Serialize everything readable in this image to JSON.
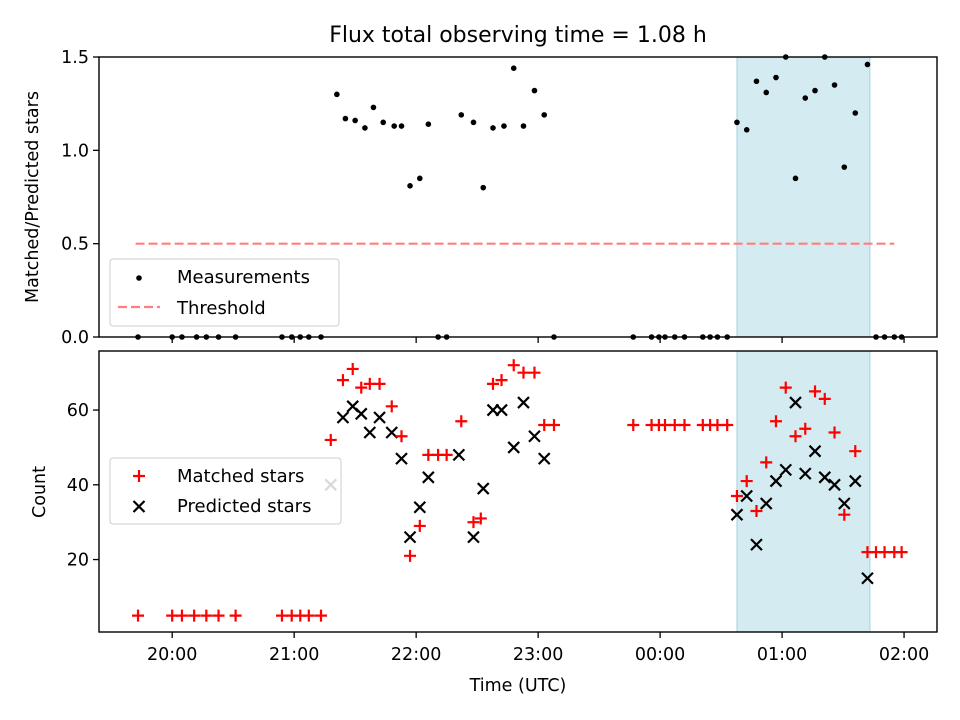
{
  "title": "Flux total observing time = 1.08 h",
  "colors": {
    "measurement": "#000000",
    "threshold": "#ff7f7f",
    "matched": "#ff0000",
    "predicted": "#000000",
    "highlight": "#d4ebf1",
    "highlight_edge": "#a8d2e0"
  },
  "chart_data": [
    {
      "type": "scatter",
      "title": "Flux total observing time = 1.08 h",
      "xlabel": "",
      "ylabel": "Matched/Predicted stars",
      "x_unit": "hours since 00:00 UTC",
      "xlim": [
        -4.6,
        2.27
      ],
      "ylim": [
        0,
        1.5
      ],
      "yticks": [
        0.0,
        0.5,
        1.0,
        1.5
      ],
      "ytick_labels": [
        "0.0",
        "0.5",
        "1.0",
        "1.5"
      ],
      "highlight_span": [
        0.63,
        1.72
      ],
      "threshold": {
        "label": "Threshold",
        "y": 0.5,
        "x_range": [
          -4.3,
          1.92
        ],
        "style": "dashed"
      },
      "legend": {
        "location": "lower-left",
        "entries": [
          "Measurements",
          "Threshold"
        ]
      },
      "series": [
        {
          "name": "Measurements",
          "marker": "dot",
          "points": [
            [
              -4.28,
              0
            ],
            [
              -4.0,
              0
            ],
            [
              -3.92,
              0
            ],
            [
              -3.8,
              0
            ],
            [
              -3.72,
              0
            ],
            [
              -3.62,
              0
            ],
            [
              -3.48,
              0
            ],
            [
              -3.1,
              0
            ],
            [
              -3.02,
              0
            ],
            [
              -2.95,
              0
            ],
            [
              -2.88,
              0
            ],
            [
              -2.78,
              0
            ],
            [
              -2.65,
              1.3
            ],
            [
              -2.58,
              1.17
            ],
            [
              -2.5,
              1.16
            ],
            [
              -2.42,
              1.12
            ],
            [
              -2.35,
              1.23
            ],
            [
              -2.27,
              1.15
            ],
            [
              -2.18,
              1.13
            ],
            [
              -2.12,
              1.13
            ],
            [
              -2.05,
              0.81
            ],
            [
              -1.97,
              0.85
            ],
            [
              -1.9,
              1.14
            ],
            [
              -1.82,
              0
            ],
            [
              -1.75,
              0
            ],
            [
              -1.63,
              1.19
            ],
            [
              -1.53,
              1.15
            ],
            [
              -1.45,
              0.8
            ],
            [
              -1.37,
              1.12
            ],
            [
              -1.28,
              1.13
            ],
            [
              -1.2,
              1.44
            ],
            [
              -1.12,
              1.13
            ],
            [
              -1.03,
              1.32
            ],
            [
              -0.95,
              1.19
            ],
            [
              -0.87,
              0
            ],
            [
              -0.22,
              0
            ],
            [
              -0.07,
              0
            ],
            [
              -0.01,
              0
            ],
            [
              0.04,
              0
            ],
            [
              0.12,
              0
            ],
            [
              0.2,
              0
            ],
            [
              0.35,
              0
            ],
            [
              0.41,
              0
            ],
            [
              0.47,
              0
            ],
            [
              0.55,
              0
            ],
            [
              0.63,
              1.15
            ],
            [
              0.71,
              1.11
            ],
            [
              0.79,
              1.37
            ],
            [
              0.87,
              1.31
            ],
            [
              0.95,
              1.39
            ],
            [
              1.03,
              1.5
            ],
            [
              1.11,
              0.85
            ],
            [
              1.19,
              1.28
            ],
            [
              1.27,
              1.32
            ],
            [
              1.35,
              1.5
            ],
            [
              1.43,
              1.35
            ],
            [
              1.51,
              0.91
            ],
            [
              1.6,
              1.2
            ],
            [
              1.7,
              1.46
            ],
            [
              1.77,
              0
            ],
            [
              1.84,
              0
            ],
            [
              1.92,
              0
            ],
            [
              1.98,
              0
            ]
          ]
        }
      ]
    },
    {
      "type": "scatter",
      "title": "",
      "xlabel": "Time (UTC)",
      "ylabel": "Count",
      "x_unit": "hours since 00:00 UTC",
      "xlim": [
        -4.6,
        2.27
      ],
      "ylim": [
        0.62,
        75.8
      ],
      "yticks": [
        20,
        40,
        60
      ],
      "ytick_labels": [
        "20",
        "40",
        "60"
      ],
      "xticks": [
        -4,
        -3,
        -2,
        -1,
        0,
        1,
        2
      ],
      "xtick_labels": [
        "20:00",
        "21:00",
        "22:00",
        "23:00",
        "00:00",
        "01:00",
        "02:00"
      ],
      "highlight_span": [
        0.63,
        1.72
      ],
      "legend": {
        "location": "center-left",
        "entries": [
          "Matched stars",
          "Predicted stars"
        ]
      },
      "series": [
        {
          "name": "Matched stars",
          "marker": "plus",
          "points": [
            [
              -4.28,
              5
            ],
            [
              -4.0,
              5
            ],
            [
              -3.92,
              5
            ],
            [
              -3.82,
              5
            ],
            [
              -3.72,
              5
            ],
            [
              -3.62,
              5
            ],
            [
              -3.48,
              5
            ],
            [
              -3.1,
              5
            ],
            [
              -3.02,
              5
            ],
            [
              -2.95,
              5
            ],
            [
              -2.88,
              5
            ],
            [
              -2.78,
              5
            ],
            [
              -2.7,
              52
            ],
            [
              -2.6,
              68
            ],
            [
              -2.52,
              71
            ],
            [
              -2.45,
              66
            ],
            [
              -2.38,
              67
            ],
            [
              -2.3,
              67
            ],
            [
              -2.2,
              61
            ],
            [
              -2.12,
              53
            ],
            [
              -2.05,
              21
            ],
            [
              -1.97,
              29
            ],
            [
              -1.9,
              48
            ],
            [
              -1.82,
              48
            ],
            [
              -1.75,
              48
            ],
            [
              -1.63,
              57
            ],
            [
              -1.53,
              30
            ],
            [
              -1.47,
              31
            ],
            [
              -1.37,
              67
            ],
            [
              -1.3,
              68
            ],
            [
              -1.2,
              72
            ],
            [
              -1.12,
              70
            ],
            [
              -1.03,
              70
            ],
            [
              -0.95,
              56
            ],
            [
              -0.87,
              56
            ],
            [
              -0.22,
              56
            ],
            [
              -0.07,
              56
            ],
            [
              -0.01,
              56
            ],
            [
              0.04,
              56
            ],
            [
              0.12,
              56
            ],
            [
              0.2,
              56
            ],
            [
              0.35,
              56
            ],
            [
              0.41,
              56
            ],
            [
              0.47,
              56
            ],
            [
              0.55,
              56
            ],
            [
              0.63,
              37
            ],
            [
              0.71,
              41
            ],
            [
              0.79,
              33
            ],
            [
              0.87,
              46
            ],
            [
              0.95,
              57
            ],
            [
              1.03,
              66
            ],
            [
              1.11,
              53
            ],
            [
              1.19,
              55
            ],
            [
              1.27,
              65
            ],
            [
              1.35,
              63
            ],
            [
              1.43,
              54
            ],
            [
              1.51,
              32
            ],
            [
              1.6,
              49
            ],
            [
              1.7,
              22
            ],
            [
              1.77,
              22
            ],
            [
              1.84,
              22
            ],
            [
              1.92,
              22
            ],
            [
              1.98,
              22
            ]
          ]
        },
        {
          "name": "Predicted stars",
          "marker": "x",
          "points": [
            [
              -2.7,
              40
            ],
            [
              -2.6,
              58
            ],
            [
              -2.52,
              61
            ],
            [
              -2.45,
              59
            ],
            [
              -2.38,
              54
            ],
            [
              -2.3,
              58
            ],
            [
              -2.2,
              54
            ],
            [
              -2.12,
              47
            ],
            [
              -2.05,
              26
            ],
            [
              -1.97,
              34
            ],
            [
              -1.9,
              42
            ],
            [
              -1.65,
              48
            ],
            [
              -1.53,
              26
            ],
            [
              -1.45,
              39
            ],
            [
              -1.37,
              60
            ],
            [
              -1.3,
              60
            ],
            [
              -1.2,
              50
            ],
            [
              -1.12,
              62
            ],
            [
              -1.03,
              53
            ],
            [
              -0.95,
              47
            ],
            [
              0.63,
              32
            ],
            [
              0.71,
              37
            ],
            [
              0.79,
              24
            ],
            [
              0.87,
              35
            ],
            [
              0.95,
              41
            ],
            [
              1.03,
              44
            ],
            [
              1.11,
              62
            ],
            [
              1.19,
              43
            ],
            [
              1.27,
              49
            ],
            [
              1.35,
              42
            ],
            [
              1.43,
              40
            ],
            [
              1.51,
              35
            ],
            [
              1.6,
              41
            ],
            [
              1.7,
              15
            ]
          ]
        }
      ]
    }
  ]
}
